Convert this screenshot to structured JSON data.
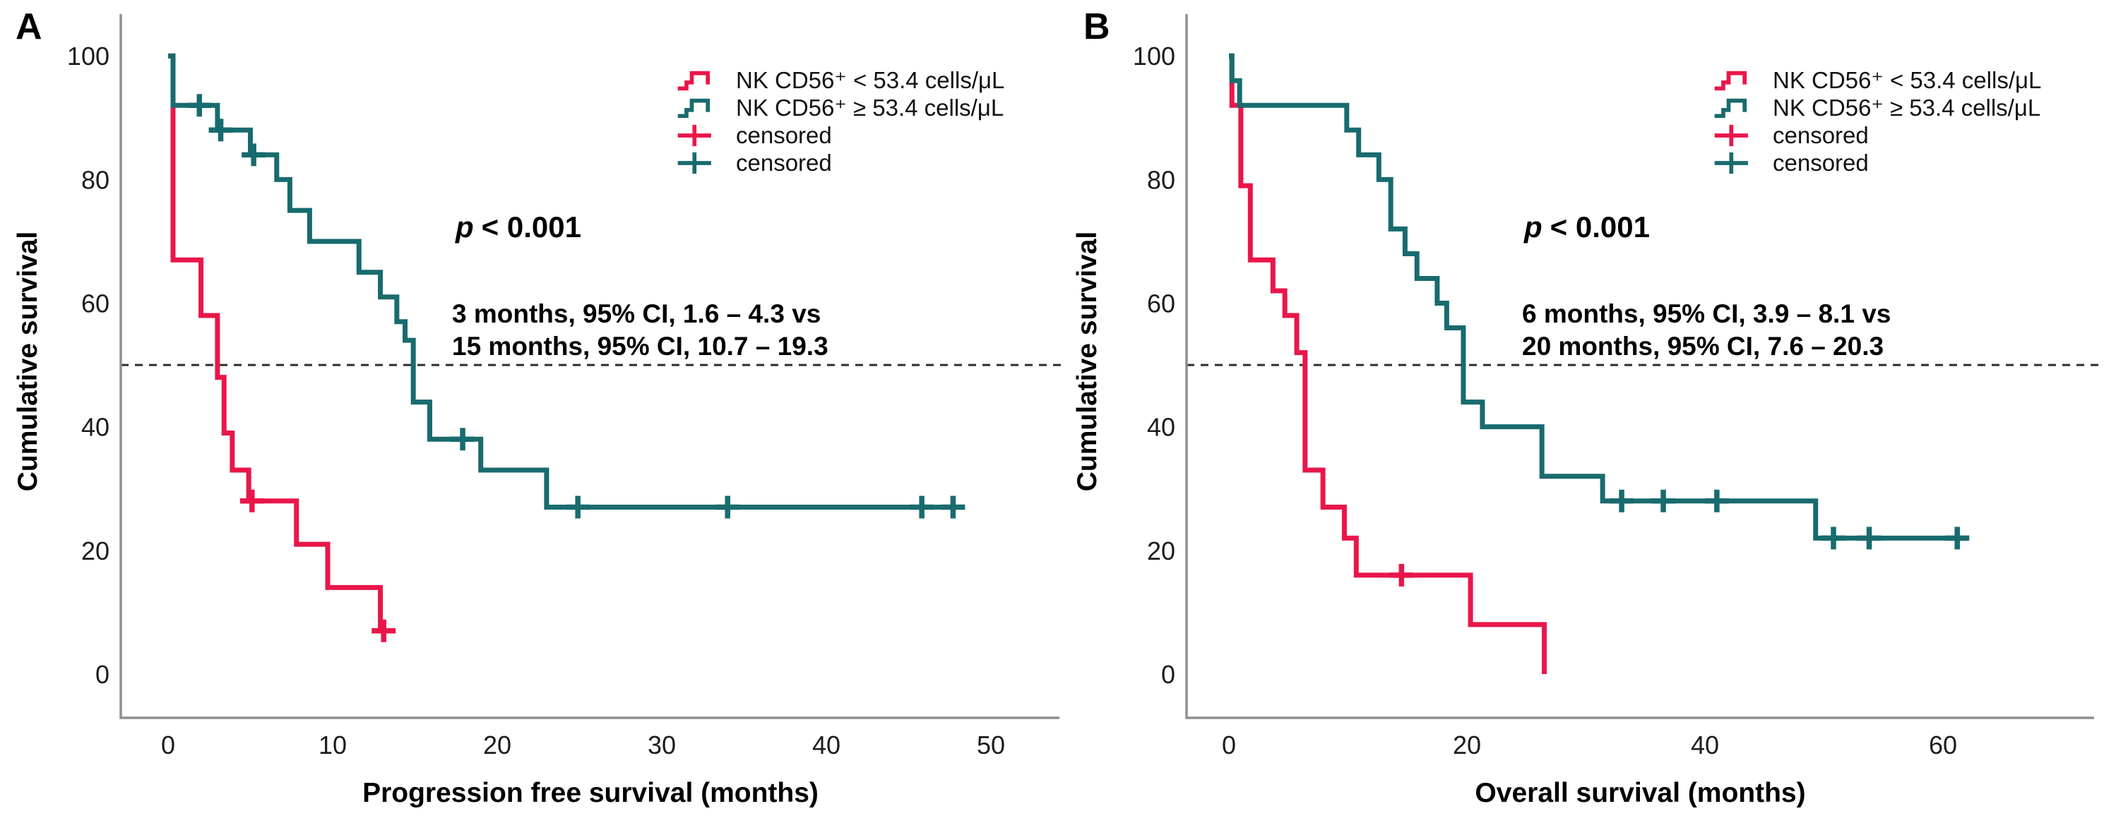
{
  "figure": {
    "background": "#ffffff",
    "axis_color": "#8f8f8f",
    "reference_line_color": "#2e2e2e",
    "panel_count": 2
  },
  "chart_data": [
    {
      "type": "line",
      "subtype": "kaplan-meier-step",
      "panel_label": "A",
      "xlabel": "Progression free survival (months)",
      "ylabel": "Cumulative survival",
      "xlim": [
        0,
        52
      ],
      "ylim": [
        0,
        100
      ],
      "x_ticks": [
        0,
        10,
        20,
        30,
        40,
        50
      ],
      "y_ticks": [
        0,
        20,
        40,
        60,
        80,
        100
      ],
      "grid": false,
      "legend_position": "top-right",
      "reference_line_y": 50,
      "censored_label": "censored",
      "annotations": {
        "p_symbol": "p",
        "p_text": "< 0.001",
        "ci_lines": [
          "3 months, 95% CI, 1.6 – 4.3 vs",
          "15 months, 95% CI, 10.7 – 19.3"
        ]
      },
      "series": [
        {
          "name": "NK CD56⁺ < 53.4 cells/μL",
          "color": "#e9164a",
          "median_months": 3,
          "steps": [
            [
              0,
              100
            ],
            [
              0.3,
              67
            ],
            [
              2,
              58
            ],
            [
              3,
              48
            ],
            [
              3.4,
              39
            ],
            [
              3.9,
              33
            ],
            [
              4.9,
              28
            ],
            [
              7.8,
              21
            ],
            [
              9.7,
              14
            ],
            [
              12.9,
              7
            ]
          ],
          "end_t": 13.3,
          "censored": [
            [
              5.1,
              28
            ],
            [
              13.1,
              7
            ]
          ]
        },
        {
          "name": "NK CD56⁺ ≥ 53.4 cells/μL",
          "color": "#186b6e",
          "median_months": 15,
          "steps": [
            [
              0,
              100
            ],
            [
              0.3,
              92
            ],
            [
              3,
              88
            ],
            [
              5,
              84
            ],
            [
              6.6,
              80
            ],
            [
              7.4,
              75
            ],
            [
              8.6,
              70
            ],
            [
              11.6,
              65
            ],
            [
              12.9,
              61
            ],
            [
              13.9,
              57
            ],
            [
              14.4,
              54
            ],
            [
              14.9,
              44
            ],
            [
              15.9,
              38
            ],
            [
              19,
              33
            ],
            [
              23,
              27
            ]
          ],
          "end_t": 48.3,
          "censored": [
            [
              1.9,
              92
            ],
            [
              3.2,
              88
            ],
            [
              5.2,
              84
            ],
            [
              17.9,
              38
            ],
            [
              24.9,
              27
            ],
            [
              34,
              27
            ],
            [
              45.8,
              27
            ],
            [
              47.7,
              27
            ]
          ]
        }
      ]
    },
    {
      "type": "line",
      "subtype": "kaplan-meier-step",
      "panel_label": "B",
      "xlabel": "Overall survival (months)",
      "ylabel": "Cumulative survival",
      "xlim": [
        0,
        72
      ],
      "ylim": [
        0,
        100
      ],
      "x_ticks": [
        0,
        20,
        40,
        60
      ],
      "y_ticks": [
        0,
        20,
        40,
        60,
        80,
        100
      ],
      "grid": false,
      "legend_position": "top-right",
      "reference_line_y": 50,
      "censored_label": "censored",
      "annotations": {
        "p_symbol": "p",
        "p_text": "< 0.001",
        "ci_lines": [
          "6 months, 95% CI, 3.9 – 8.1 vs",
          "20 months, 95% CI, 7.6 – 20.3"
        ]
      },
      "series": [
        {
          "name": "NK CD56⁺ < 53.4 cells/μL",
          "color": "#e9164a",
          "median_months": 6,
          "steps": [
            [
              0,
              100
            ],
            [
              0.25,
              92
            ],
            [
              1.0,
              79
            ],
            [
              1.8,
              67
            ],
            [
              3.7,
              62
            ],
            [
              4.7,
              58
            ],
            [
              5.7,
              52
            ],
            [
              6.4,
              33
            ],
            [
              7.9,
              27
            ],
            [
              9.7,
              22
            ],
            [
              10.7,
              16
            ],
            [
              20.3,
              8
            ],
            [
              26.5,
              0
            ]
          ],
          "end_t": 26.5,
          "censored": [
            [
              14.5,
              16
            ]
          ]
        },
        {
          "name": "NK CD56⁺ ≥ 53.4 cells/μL",
          "color": "#186b6e",
          "median_months": 20,
          "steps": [
            [
              0,
              100
            ],
            [
              0.25,
              96
            ],
            [
              0.9,
              92
            ],
            [
              9.9,
              88
            ],
            [
              10.9,
              84
            ],
            [
              12.6,
              80
            ],
            [
              13.6,
              72
            ],
            [
              14.8,
              68
            ],
            [
              15.8,
              64
            ],
            [
              17.5,
              60
            ],
            [
              18.3,
              56
            ],
            [
              19.7,
              44
            ],
            [
              21.3,
              40
            ],
            [
              26.3,
              32
            ],
            [
              31.4,
              28
            ],
            [
              49.3,
              22
            ]
          ],
          "end_t": 61.5,
          "censored": [
            [
              33,
              28
            ],
            [
              36.5,
              28
            ],
            [
              41,
              28
            ],
            [
              50.8,
              22
            ],
            [
              53.8,
              22
            ],
            [
              61.2,
              22
            ]
          ]
        }
      ]
    }
  ]
}
